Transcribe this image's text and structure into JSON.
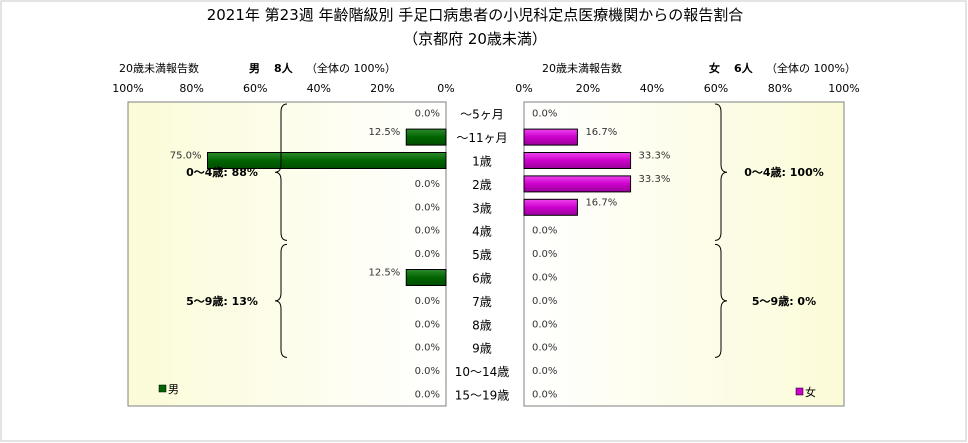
{
  "chart_data": {
    "type": "bar",
    "title": "2021年 第23週 年齢階級別 手足口病患者の小児科定点医療機関からの報告割合",
    "subtitle": "（京都府 20歳未満）",
    "categories": [
      "～5ヶ月",
      "～11ヶ月",
      "1歳",
      "2歳",
      "3歳",
      "4歳",
      "5歳",
      "6歳",
      "7歳",
      "8歳",
      "9歳",
      "10～14歳",
      "15～19歳"
    ],
    "male": {
      "name": "男",
      "header_label": "20歳未満報告数",
      "header_sex": "男",
      "header_count": "8人",
      "header_total": "（全体の 100%）",
      "ticks": [
        "100%",
        "80%",
        "60%",
        "40%",
        "20%",
        "0%"
      ],
      "xlim": [
        0,
        100
      ],
      "color": "#006400",
      "values": [
        0.0,
        12.5,
        75.0,
        0.0,
        0.0,
        0.0,
        0.0,
        12.5,
        0.0,
        0.0,
        0.0,
        0.0,
        0.0
      ],
      "labels": [
        "0.0%",
        "12.5%",
        "75.0%",
        "0.0%",
        "0.0%",
        "0.0%",
        "0.0%",
        "12.5%",
        "0.0%",
        "0.0%",
        "0.0%",
        "0.0%",
        "0.0%"
      ],
      "groups": [
        {
          "label": "0～4歳: 88%",
          "from": 0,
          "to": 5
        },
        {
          "label": "5～9歳: 13%",
          "from": 6,
          "to": 10
        }
      ],
      "legend": "男"
    },
    "female": {
      "name": "女",
      "header_label": "20歳未満報告数",
      "header_sex": "女",
      "header_count": "6人",
      "header_total": "（全体の 100%）",
      "ticks": [
        "0%",
        "20%",
        "40%",
        "60%",
        "80%",
        "100%"
      ],
      "xlim": [
        0,
        100
      ],
      "color": "#cc00cc",
      "values": [
        0.0,
        16.7,
        33.3,
        33.3,
        16.7,
        0.0,
        0.0,
        0.0,
        0.0,
        0.0,
        0.0,
        0.0,
        0.0
      ],
      "labels": [
        "0.0%",
        "16.7%",
        "33.3%",
        "33.3%",
        "16.7%",
        "0.0%",
        "0.0%",
        "0.0%",
        "0.0%",
        "0.0%",
        "0.0%",
        "0.0%",
        "0.0%"
      ],
      "groups": [
        {
          "label": "0～4歳: 100%",
          "from": 0,
          "to": 5
        },
        {
          "label": "5～9歳: 0%",
          "from": 6,
          "to": 10
        }
      ],
      "legend": "女"
    }
  }
}
